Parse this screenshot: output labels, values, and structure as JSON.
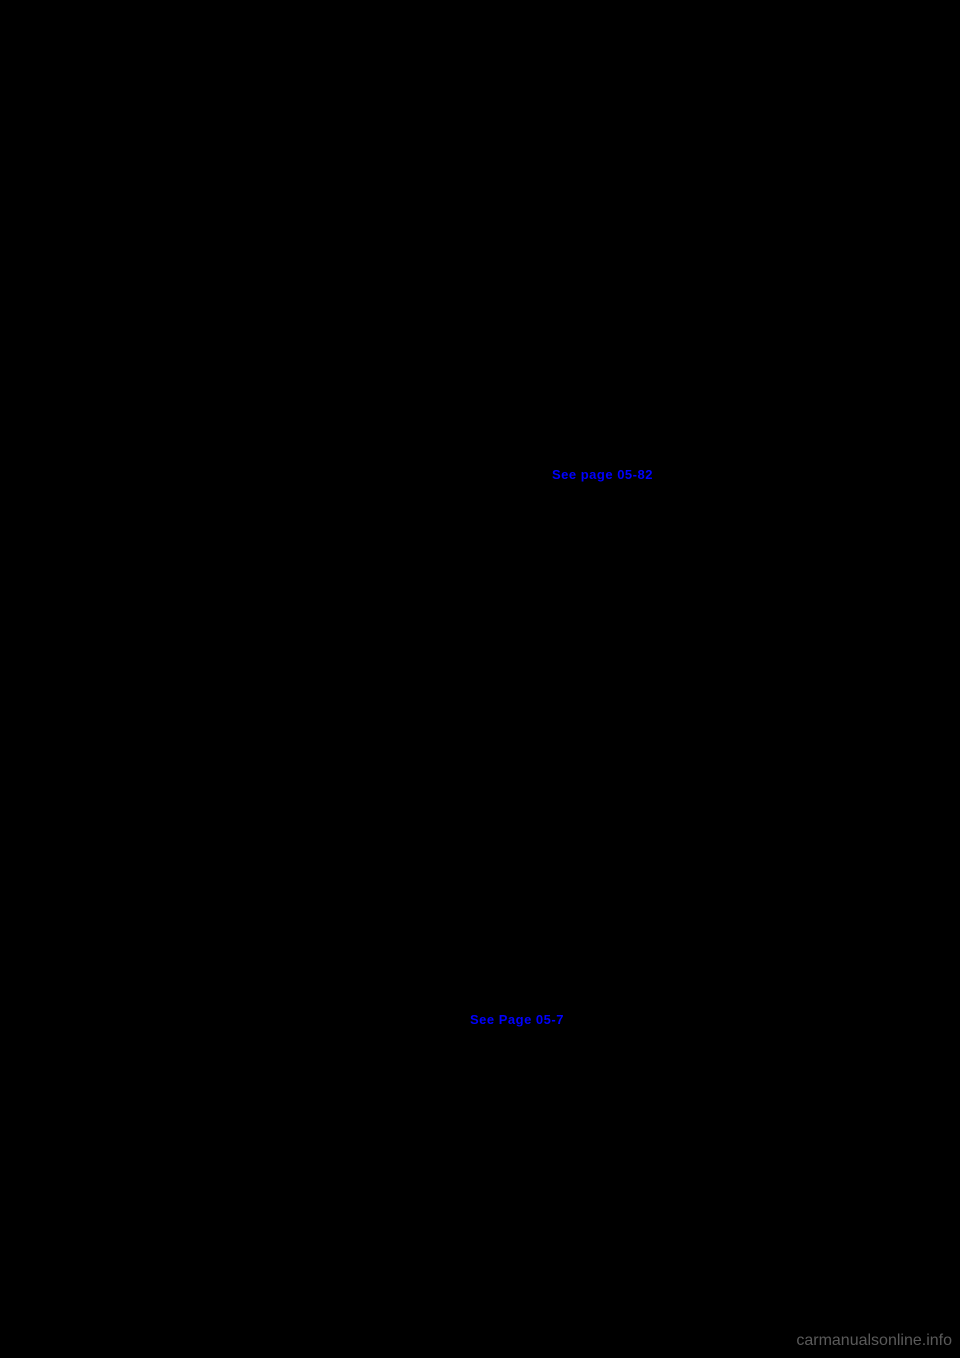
{
  "links": {
    "link1": "See page 05-82",
    "link2": "See Page 05-7"
  },
  "watermark": "carmanualsonline.info",
  "colors": {
    "background": "#000000",
    "link_color": "#0000ff",
    "watermark_color": "#808080"
  }
}
